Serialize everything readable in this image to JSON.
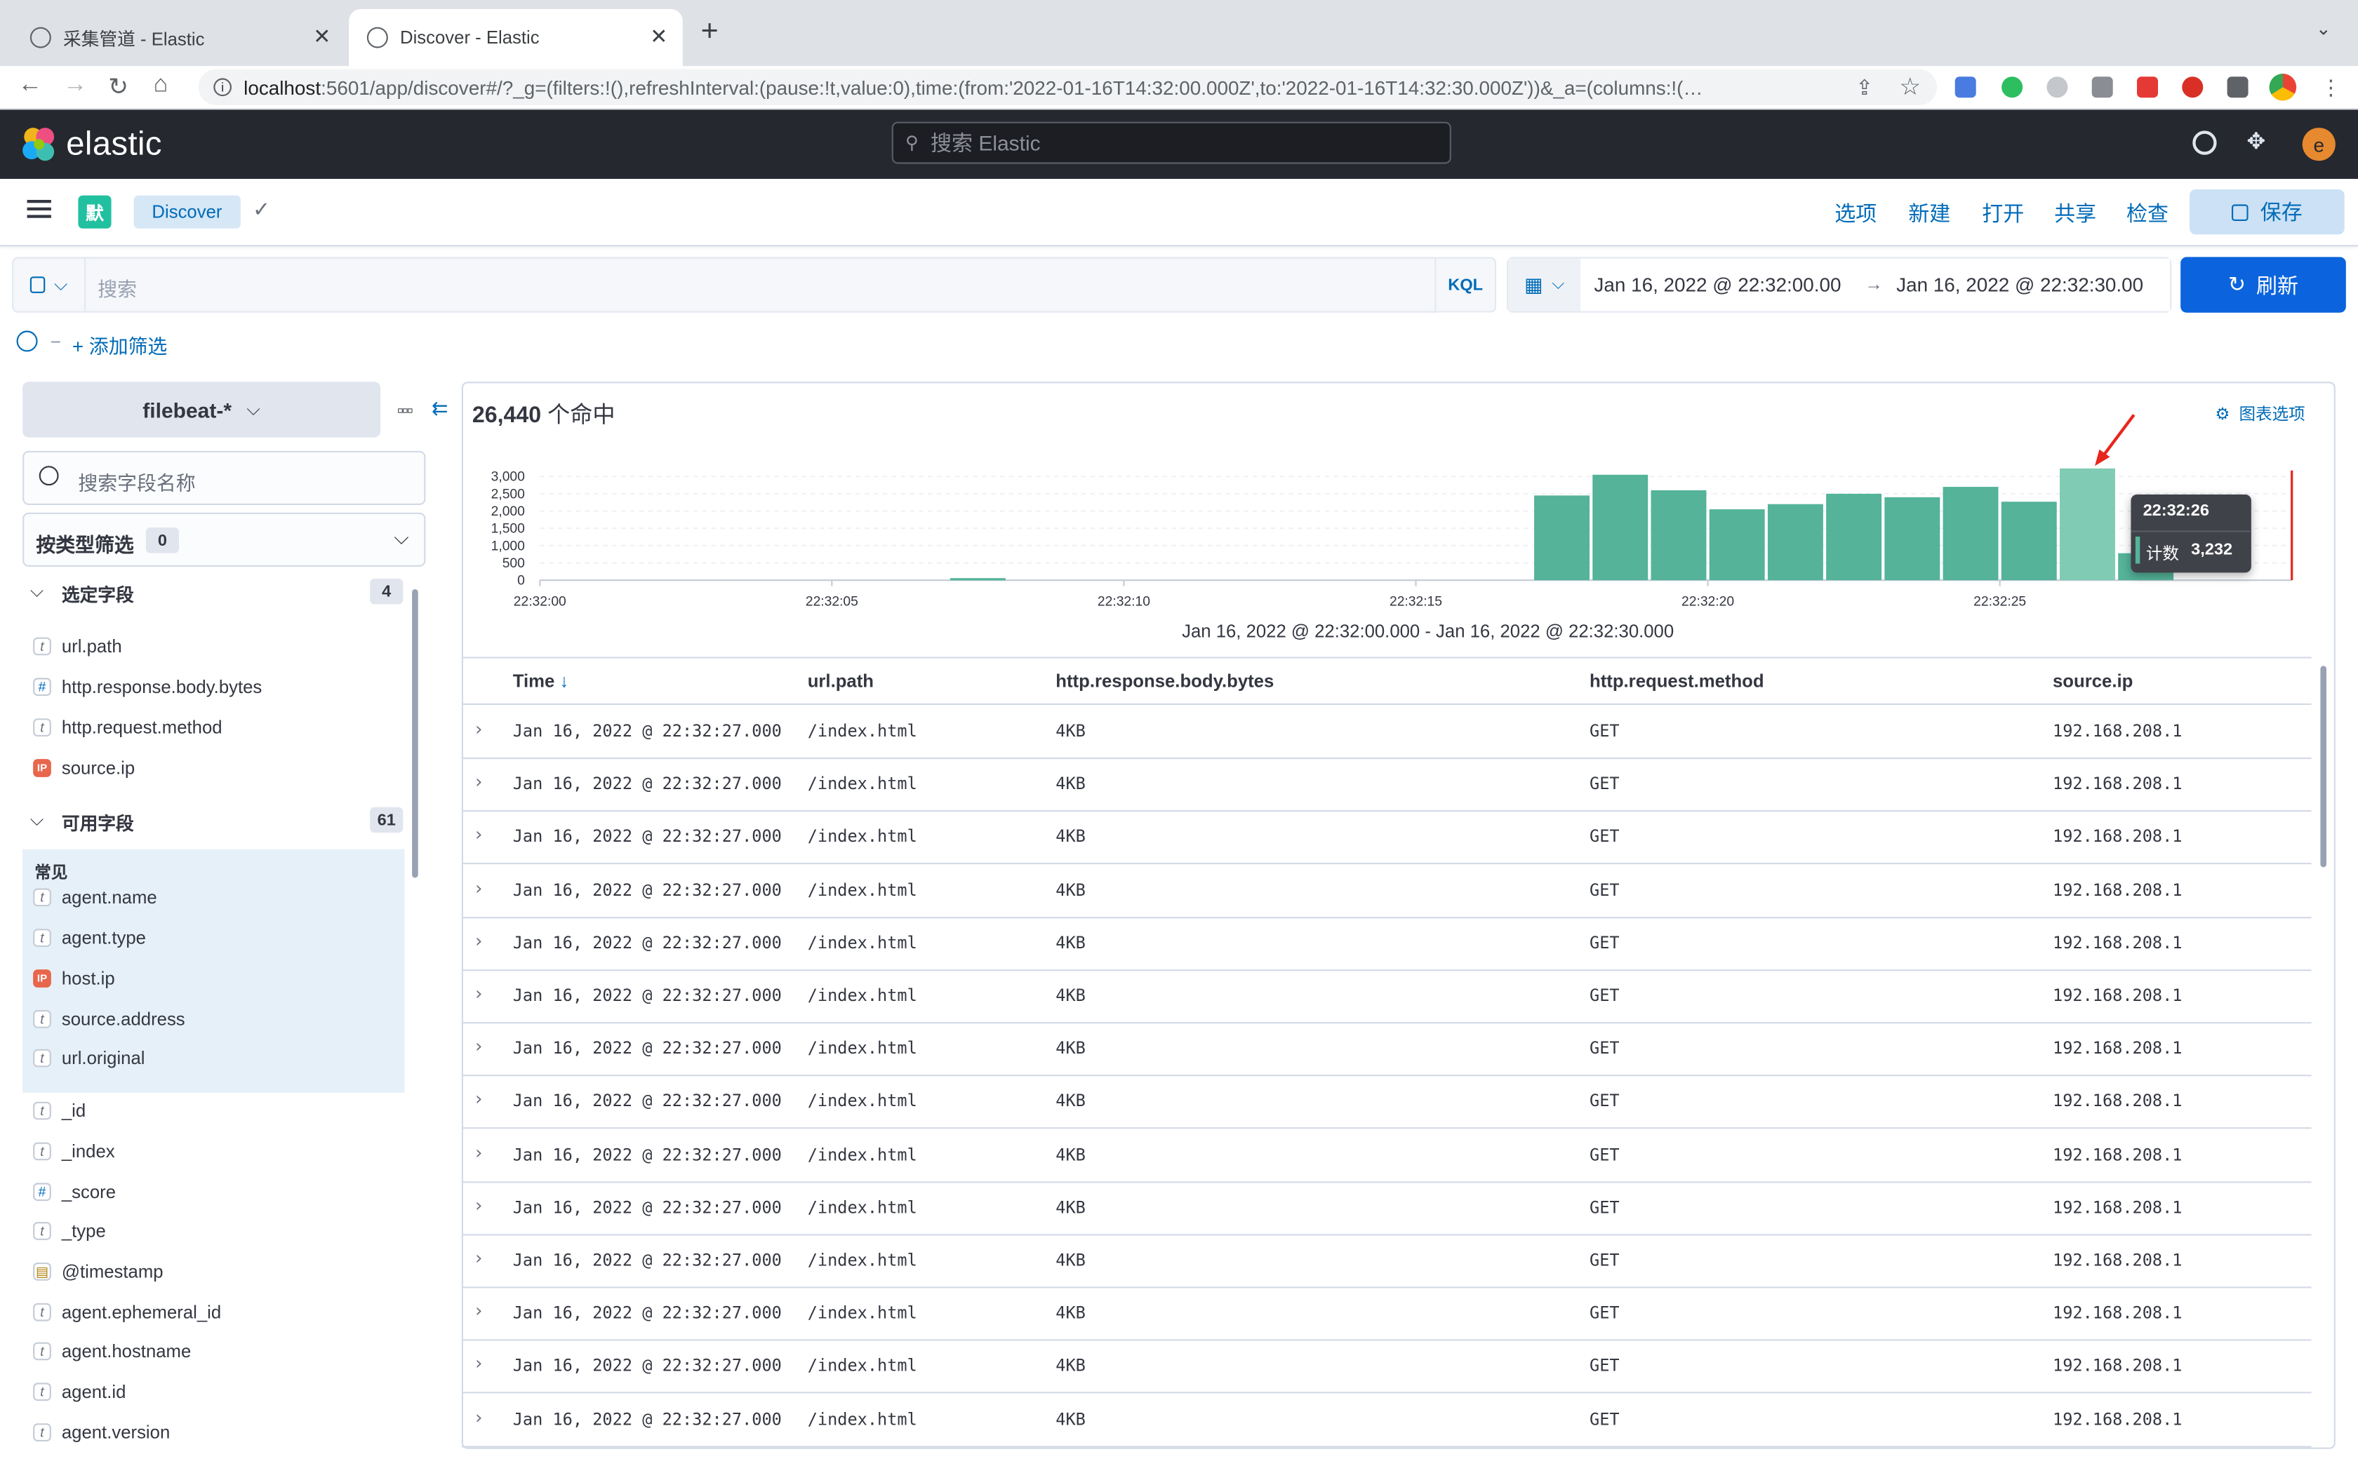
{
  "browser": {
    "tabs": [
      {
        "title": "采集管道 - Elastic",
        "active": false
      },
      {
        "title": "Discover - Elastic",
        "active": true
      }
    ],
    "new_tab": "+",
    "url_host": "localhost",
    "url_rest": ":5601/app/discover#/?_g=(filters:!(),refreshInterval:(pause:!t,value:0),time:(from:'2022-01-16T14:32:00.000Z',to:'2022-01-16T14:32:30.000Z'))&_a=(columns:!(…",
    "profile_letter": "e"
  },
  "header": {
    "logo_text": "elastic",
    "search_placeholder": "搜索 Elastic",
    "user_initial": "e"
  },
  "appbar": {
    "space_badge": "默",
    "breadcrumb": "Discover",
    "links": [
      "选项",
      "新建",
      "打开",
      "共享",
      "检查"
    ],
    "save_label": "保存"
  },
  "querybar": {
    "placeholder": "搜索",
    "language": "KQL",
    "time_from": "Jan 16, 2022 @ 22:32:00.00",
    "arrow": "→",
    "time_to": "Jan 16, 2022 @ 22:32:30.00",
    "refresh_label": "刷新",
    "add_filter": "+ 添加筛选"
  },
  "sidebar": {
    "index_pattern": "filebeat-*",
    "field_search_placeholder": "搜索字段名称",
    "type_filter_label": "按类型筛选",
    "type_filter_count": "0",
    "selected_title": "选定字段",
    "selected_count": "4",
    "selected_fields": [
      {
        "name": "url.path",
        "type": "t"
      },
      {
        "name": "http.response.body.bytes",
        "type": "#"
      },
      {
        "name": "http.request.method",
        "type": "t"
      },
      {
        "name": "source.ip",
        "type": "IP"
      }
    ],
    "available_title": "可用字段",
    "available_count": "61",
    "popular_title": "常见",
    "popular_fields": [
      {
        "name": "agent.name",
        "type": "t"
      },
      {
        "name": "agent.type",
        "type": "t"
      },
      {
        "name": "host.ip",
        "type": "IP"
      },
      {
        "name": "source.address",
        "type": "t"
      },
      {
        "name": "url.original",
        "type": "t"
      }
    ],
    "other_fields": [
      {
        "name": "_id",
        "type": "t"
      },
      {
        "name": "_index",
        "type": "t"
      },
      {
        "name": "_score",
        "type": "#"
      },
      {
        "name": "_type",
        "type": "t"
      },
      {
        "name": "@timestamp",
        "type": "date"
      },
      {
        "name": "agent.ephemeral_id",
        "type": "t"
      },
      {
        "name": "agent.hostname",
        "type": "t"
      },
      {
        "name": "agent.id",
        "type": "t"
      },
      {
        "name": "agent.version",
        "type": "t"
      }
    ]
  },
  "hits": {
    "count": "26,440",
    "suffix": "个命中"
  },
  "chart_options_label": "图表选项",
  "chart_data": {
    "type": "bar",
    "xlabel": "Jan 16, 2022 @ 22:32:00.000 - Jan 16, 2022 @ 22:32:30.000",
    "ylim": [
      0,
      3000
    ],
    "yticks": [
      "3,000",
      "2,500",
      "2,000",
      "1,500",
      "1,000",
      "500",
      "0"
    ],
    "xticks": [
      "22:32:00",
      "22:32:05",
      "22:32:10",
      "22:32:15",
      "22:32:20",
      "22:32:25"
    ],
    "bars": [
      {
        "second": 7,
        "value": 60
      },
      {
        "second": 17,
        "value": 2450
      },
      {
        "second": 18,
        "value": 3050
      },
      {
        "second": 19,
        "value": 2600
      },
      {
        "second": 20,
        "value": 2050
      },
      {
        "second": 21,
        "value": 2200
      },
      {
        "second": 22,
        "value": 2500
      },
      {
        "second": 23,
        "value": 2400
      },
      {
        "second": 24,
        "value": 2700
      },
      {
        "second": 25,
        "value": 2270
      },
      {
        "second": 26,
        "value": 3232,
        "highlight": true
      },
      {
        "second": 27,
        "value": 780
      }
    ],
    "color": "#54b399",
    "highlight_color": "#7fcbb3",
    "tooltip": {
      "time": "22:32:26",
      "label": "计数",
      "value": "3,232"
    }
  },
  "table": {
    "columns": [
      "Time",
      "url.path",
      "http.response.body.bytes",
      "http.request.method",
      "source.ip"
    ],
    "sort_icon": "↓",
    "rows": [
      [
        "Jan 16, 2022 @ 22:32:27.000",
        "/index.html",
        "4KB",
        "GET",
        "192.168.208.1"
      ],
      [
        "Jan 16, 2022 @ 22:32:27.000",
        "/index.html",
        "4KB",
        "GET",
        "192.168.208.1"
      ],
      [
        "Jan 16, 2022 @ 22:32:27.000",
        "/index.html",
        "4KB",
        "GET",
        "192.168.208.1"
      ],
      [
        "Jan 16, 2022 @ 22:32:27.000",
        "/index.html",
        "4KB",
        "GET",
        "192.168.208.1"
      ],
      [
        "Jan 16, 2022 @ 22:32:27.000",
        "/index.html",
        "4KB",
        "GET",
        "192.168.208.1"
      ],
      [
        "Jan 16, 2022 @ 22:32:27.000",
        "/index.html",
        "4KB",
        "GET",
        "192.168.208.1"
      ],
      [
        "Jan 16, 2022 @ 22:32:27.000",
        "/index.html",
        "4KB",
        "GET",
        "192.168.208.1"
      ],
      [
        "Jan 16, 2022 @ 22:32:27.000",
        "/index.html",
        "4KB",
        "GET",
        "192.168.208.1"
      ],
      [
        "Jan 16, 2022 @ 22:32:27.000",
        "/index.html",
        "4KB",
        "GET",
        "192.168.208.1"
      ],
      [
        "Jan 16, 2022 @ 22:32:27.000",
        "/index.html",
        "4KB",
        "GET",
        "192.168.208.1"
      ],
      [
        "Jan 16, 2022 @ 22:32:27.000",
        "/index.html",
        "4KB",
        "GET",
        "192.168.208.1"
      ],
      [
        "Jan 16, 2022 @ 22:32:27.000",
        "/index.html",
        "4KB",
        "GET",
        "192.168.208.1"
      ],
      [
        "Jan 16, 2022 @ 22:32:27.000",
        "/index.html",
        "4KB",
        "GET",
        "192.168.208.1"
      ],
      [
        "Jan 16, 2022 @ 22:32:27.000",
        "/index.html",
        "4KB",
        "GET",
        "192.168.208.1"
      ]
    ]
  },
  "colors": {
    "accent": "#006bb8",
    "primary_button": "#0b64dd",
    "header_bg": "#25282f",
    "annotation": "#e7261c"
  }
}
